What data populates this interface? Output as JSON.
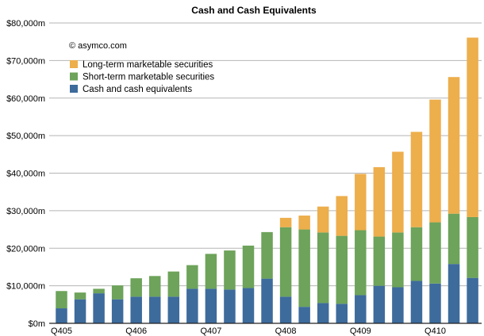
{
  "chart_data": {
    "type": "bar",
    "stacked": true,
    "title": "Cash and Cash Equivalents",
    "annotation": "© asymco.com",
    "xlabel": "",
    "ylabel": "",
    "ylim": [
      0,
      80000
    ],
    "yticks": [
      0,
      10000,
      20000,
      30000,
      40000,
      50000,
      60000,
      70000,
      80000
    ],
    "ytick_labels": [
      "$0m",
      "$10,000m",
      "$20,000m",
      "$30,000m",
      "$40,000m",
      "$50,000m",
      "$60,000m",
      "$70,000m",
      "$80,000m"
    ],
    "grid": true,
    "legend_position": "top-left",
    "categories": [
      "Q405",
      "",
      "",
      "",
      "Q406",
      "",
      "",
      "",
      "Q407",
      "",
      "",
      "",
      "Q408",
      "",
      "",
      "",
      "Q409",
      "",
      "",
      "",
      "Q410",
      "",
      ""
    ],
    "series": [
      {
        "name": "Cash and cash equivalents",
        "color": "#3D6B9C",
        "values": [
          4000,
          6400,
          8000,
          6400,
          7100,
          7100,
          7100,
          9200,
          9200,
          9000,
          9400,
          11900,
          7100,
          4400,
          5400,
          5200,
          7500,
          10000,
          9600,
          11300,
          10600,
          15800,
          12100
        ]
      },
      {
        "name": "Short-term marketable securities",
        "color": "#6DA35A",
        "values": [
          4600,
          1800,
          1200,
          3700,
          4900,
          5500,
          6700,
          6300,
          9300,
          10400,
          11300,
          12400,
          18500,
          20600,
          18800,
          18100,
          17300,
          13100,
          14600,
          14300,
          16300,
          13400,
          16200
        ]
      },
      {
        "name": "Long-term marketable securities",
        "color": "#EDAE4C",
        "values": [
          0,
          0,
          0,
          0,
          0,
          0,
          0,
          0,
          0,
          0,
          0,
          0,
          2500,
          3700,
          6900,
          10600,
          15000,
          18500,
          21500,
          25400,
          32700,
          36400,
          47800
        ]
      }
    ]
  }
}
